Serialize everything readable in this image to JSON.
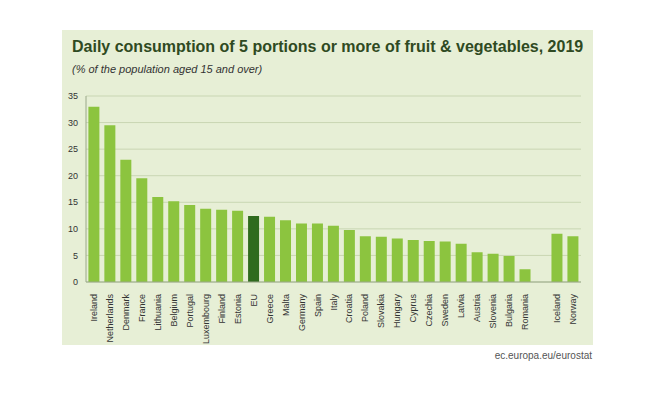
{
  "chart_data": {
    "type": "bar",
    "title": "Daily consumption of 5 portions or more of fruit & vegetables, 2019",
    "subtitle": "(% of the population aged 15 and over)",
    "source": "ec.europa.eu/eurostat",
    "categories": [
      "Ireland",
      "Netherlands",
      "Denmark",
      "France",
      "Lithuania",
      "Belgium",
      "Portugal",
      "Luxembourg",
      "Finland",
      "Estonia",
      "EU",
      "Greece",
      "Malta",
      "Germany",
      "Spain",
      "Italy",
      "Croatia",
      "Poland",
      "Slovakia",
      "Hungary",
      "Cyprus",
      "Czechia",
      "Sweden",
      "Latvia",
      "Austria",
      "Slovenia",
      "Bulgaria",
      "Romania",
      null,
      "Iceland",
      "Norway"
    ],
    "values": [
      33,
      29.5,
      23,
      19.5,
      16,
      15.2,
      14.5,
      13.8,
      13.6,
      13.4,
      12.4,
      12.3,
      11.6,
      11,
      11,
      10.6,
      9.8,
      8.6,
      8.5,
      8.2,
      7.9,
      7.7,
      7.6,
      7.2,
      5.6,
      5.3,
      4.9,
      2.4,
      null,
      9.1,
      8.6
    ],
    "colors": [
      "#8cc43f",
      "#8cc43f",
      "#8cc43f",
      "#8cc43f",
      "#8cc43f",
      "#8cc43f",
      "#8cc43f",
      "#8cc43f",
      "#8cc43f",
      "#8cc43f",
      "#2f6b1e",
      "#8cc43f",
      "#8cc43f",
      "#8cc43f",
      "#8cc43f",
      "#8cc43f",
      "#8cc43f",
      "#8cc43f",
      "#8cc43f",
      "#8cc43f",
      "#8cc43f",
      "#8cc43f",
      "#8cc43f",
      "#8cc43f",
      "#8cc43f",
      "#8cc43f",
      "#8cc43f",
      "#8cc43f",
      null,
      "#8cc43f",
      "#8cc43f"
    ],
    "ylim": [
      0,
      35
    ],
    "yticks": [
      0,
      5,
      10,
      15,
      20,
      25,
      30,
      35
    ],
    "grid": true
  }
}
